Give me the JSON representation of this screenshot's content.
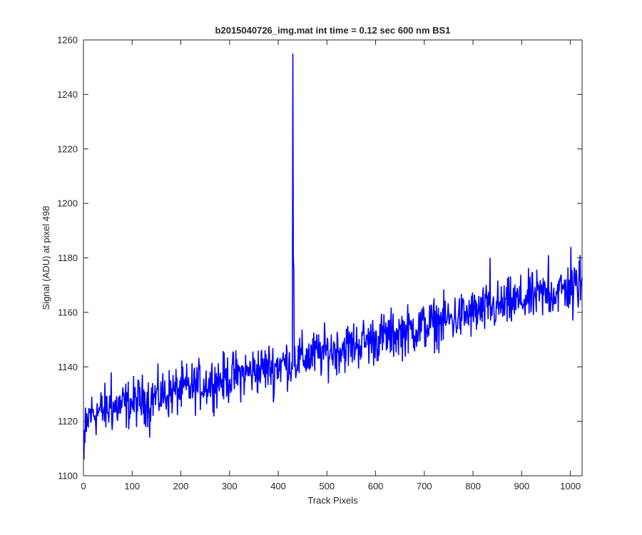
{
  "chart_data": {
    "type": "line",
    "title": "b2015040726_img.mat int time = 0.12 sec  600 nm BS1",
    "xlabel": "Track Pixels",
    "ylabel": "Signal (ADU) at pixel 498",
    "xlim": [
      0,
      1024
    ],
    "ylim": [
      1100,
      1260
    ],
    "xticks": [
      0,
      100,
      200,
      300,
      400,
      500,
      600,
      700,
      800,
      900,
      1000
    ],
    "yticks": [
      1100,
      1120,
      1140,
      1160,
      1180,
      1200,
      1220,
      1240,
      1260
    ],
    "grid": false,
    "series": [
      {
        "color": "#0000ff",
        "x_start": 1,
        "x_step": 1,
        "count": 1024,
        "trend": {
          "start": 1122,
          "slope": 0.047
        },
        "noise_amplitude": 4.5,
        "anchors": [
          {
            "x": 1,
            "y": 1106
          },
          {
            "x": 3,
            "y": 1112
          },
          {
            "x": 6,
            "y": 1116
          },
          {
            "x": 10,
            "y": 1118
          },
          {
            "x": 57,
            "y": 1138
          },
          {
            "x": 136,
            "y": 1114
          },
          {
            "x": 390,
            "y": 1127
          },
          {
            "x": 430,
            "y": 1255
          },
          {
            "x": 431,
            "y": 1180
          },
          {
            "x": 432,
            "y": 1176
          },
          {
            "x": 433,
            "y": 1140
          },
          {
            "x": 425,
            "y": 1138
          },
          {
            "x": 835,
            "y": 1180
          },
          {
            "x": 955,
            "y": 1181
          },
          {
            "x": 1001,
            "y": 1184
          },
          {
            "x": 1005,
            "y": 1157
          },
          {
            "x": 1020,
            "y": 1181
          }
        ]
      }
    ]
  }
}
